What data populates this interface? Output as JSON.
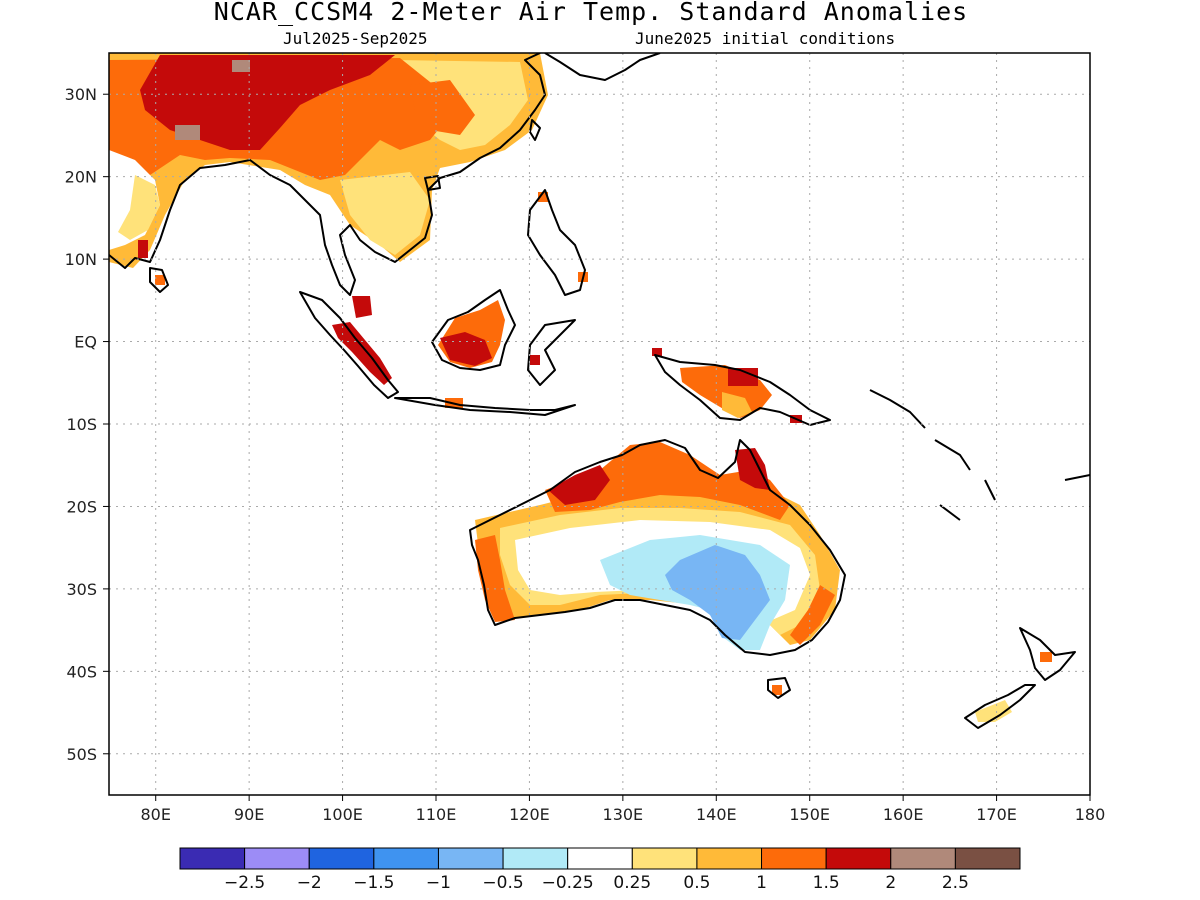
{
  "header": {
    "title": "NCAR_CCSM4 2-Meter Air Temp. Standard Anomalies",
    "period": "Jul2025-Sep2025",
    "init": "June2025 initial conditions"
  },
  "map": {
    "lon_range": [
      75,
      180
    ],
    "lat_range": [
      -55,
      35
    ],
    "lon_ticks": [
      {
        "v": 80,
        "label": "80E"
      },
      {
        "v": 90,
        "label": "90E"
      },
      {
        "v": 100,
        "label": "100E"
      },
      {
        "v": 110,
        "label": "110E"
      },
      {
        "v": 120,
        "label": "120E"
      },
      {
        "v": 130,
        "label": "130E"
      },
      {
        "v": 140,
        "label": "140E"
      },
      {
        "v": 150,
        "label": "150E"
      },
      {
        "v": 160,
        "label": "160E"
      },
      {
        "v": 170,
        "label": "170E"
      },
      {
        "v": 180,
        "label": "180"
      }
    ],
    "lat_ticks": [
      {
        "v": 30,
        "label": "30N"
      },
      {
        "v": 20,
        "label": "20N"
      },
      {
        "v": 10,
        "label": "10N"
      },
      {
        "v": 0,
        "label": "EQ"
      },
      {
        "v": -10,
        "label": "10S"
      },
      {
        "v": -20,
        "label": "20S"
      },
      {
        "v": -30,
        "label": "30S"
      },
      {
        "v": -40,
        "label": "40S"
      },
      {
        "v": -50,
        "label": "50S"
      }
    ],
    "grid": true
  },
  "legend": {
    "colors": [
      "#3a2bb3",
      "#9c8cf6",
      "#1f64e0",
      "#3f93f0",
      "#78b6f4",
      "#b1eaf7",
      "#ffffff",
      "#ffe27a",
      "#ffba38",
      "#fd6b0a",
      "#c40a0a",
      "#b0897a",
      "#7a5043"
    ],
    "labels": [
      "-2.5",
      "-2",
      "-1.5",
      "-1",
      "-0.5",
      "-0.25",
      "0.25",
      "0.5",
      "1",
      "1.5",
      "2",
      "2.5"
    ]
  },
  "colors": {
    "warm_025": "#ffe27a",
    "warm_05": "#ffba38",
    "warm_1": "#fd6b0a",
    "warm_15": "#c40a0a",
    "warm_2": "#b0897a",
    "cool_025": "#b1eaf7",
    "cool_05": "#78b6f4"
  }
}
